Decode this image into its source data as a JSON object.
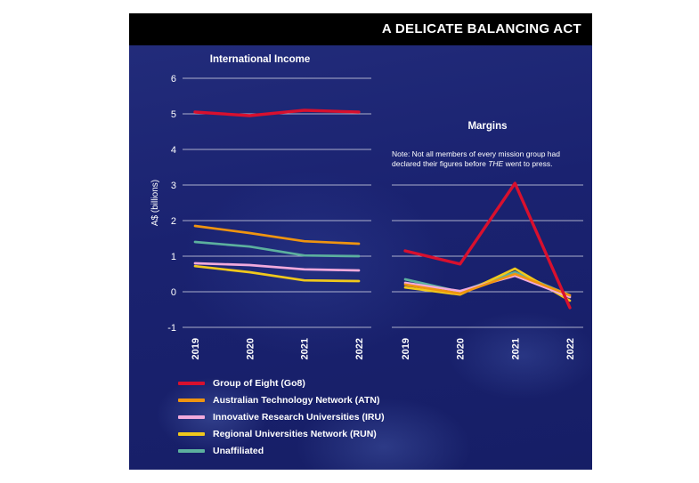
{
  "header": {
    "title": "A DELICATE BALANCING ACT"
  },
  "note": {
    "prefix": "Note: Not all members of every mission group had declared their figures before ",
    "italic": "THE",
    "suffix": " went to press."
  },
  "chart_data": [
    {
      "type": "line",
      "title": "International Income",
      "ylabel": "A$ (billions)",
      "categories": [
        "2019",
        "2020",
        "2021",
        "2022"
      ],
      "ylim": [
        -1,
        6
      ],
      "yticks": [
        6,
        5,
        4,
        3,
        2,
        1,
        0,
        -1
      ],
      "gridlines": [
        6,
        5,
        4,
        3,
        2,
        1,
        0,
        -1
      ],
      "legend_position": "bottom-left",
      "grid": true,
      "series": [
        {
          "name": "Group of Eight (Go8)",
          "color": "#d8102e",
          "values": [
            5.05,
            4.95,
            5.1,
            5.05
          ]
        },
        {
          "name": "Australian Technology Network (ATN)",
          "color": "#ef9410",
          "values": [
            1.85,
            1.65,
            1.42,
            1.35
          ]
        },
        {
          "name": "Innovative Research Universities (IRU)",
          "color": "#f2aadc",
          "values": [
            0.8,
            0.75,
            0.63,
            0.6
          ]
        },
        {
          "name": "Regional Universities Network (RUN)",
          "color": "#f0c81c",
          "values": [
            0.72,
            0.55,
            0.32,
            0.3
          ]
        },
        {
          "name": "Unaffiliated",
          "color": "#5cb09e",
          "values": [
            1.4,
            1.27,
            1.02,
            1.0
          ]
        }
      ]
    },
    {
      "type": "line",
      "title": "Margins",
      "ylabel": "",
      "categories": [
        "2019",
        "2020",
        "2021",
        "2022"
      ],
      "ylim": [
        -1,
        6
      ],
      "yticks": [],
      "gridlines": [
        3,
        2,
        1,
        0,
        -1
      ],
      "grid": true,
      "series": [
        {
          "name": "Group of Eight (Go8)",
          "color": "#d8102e",
          "values": [
            1.15,
            0.78,
            3.05,
            -0.45
          ]
        },
        {
          "name": "Australian Technology Network (ATN)",
          "color": "#ef9410",
          "values": [
            0.2,
            -0.05,
            0.5,
            -0.1
          ]
        },
        {
          "name": "Innovative Research Universities (IRU)",
          "color": "#f2aadc",
          "values": [
            0.25,
            0.02,
            0.45,
            -0.15
          ]
        },
        {
          "name": "Regional Universities Network (RUN)",
          "color": "#f0c81c",
          "values": [
            0.12,
            -0.08,
            0.65,
            -0.25
          ]
        },
        {
          "name": "Unaffiliated",
          "color": "#5cb09e",
          "values": [
            0.35,
            0.0,
            0.55,
            -0.1
          ]
        }
      ]
    }
  ]
}
